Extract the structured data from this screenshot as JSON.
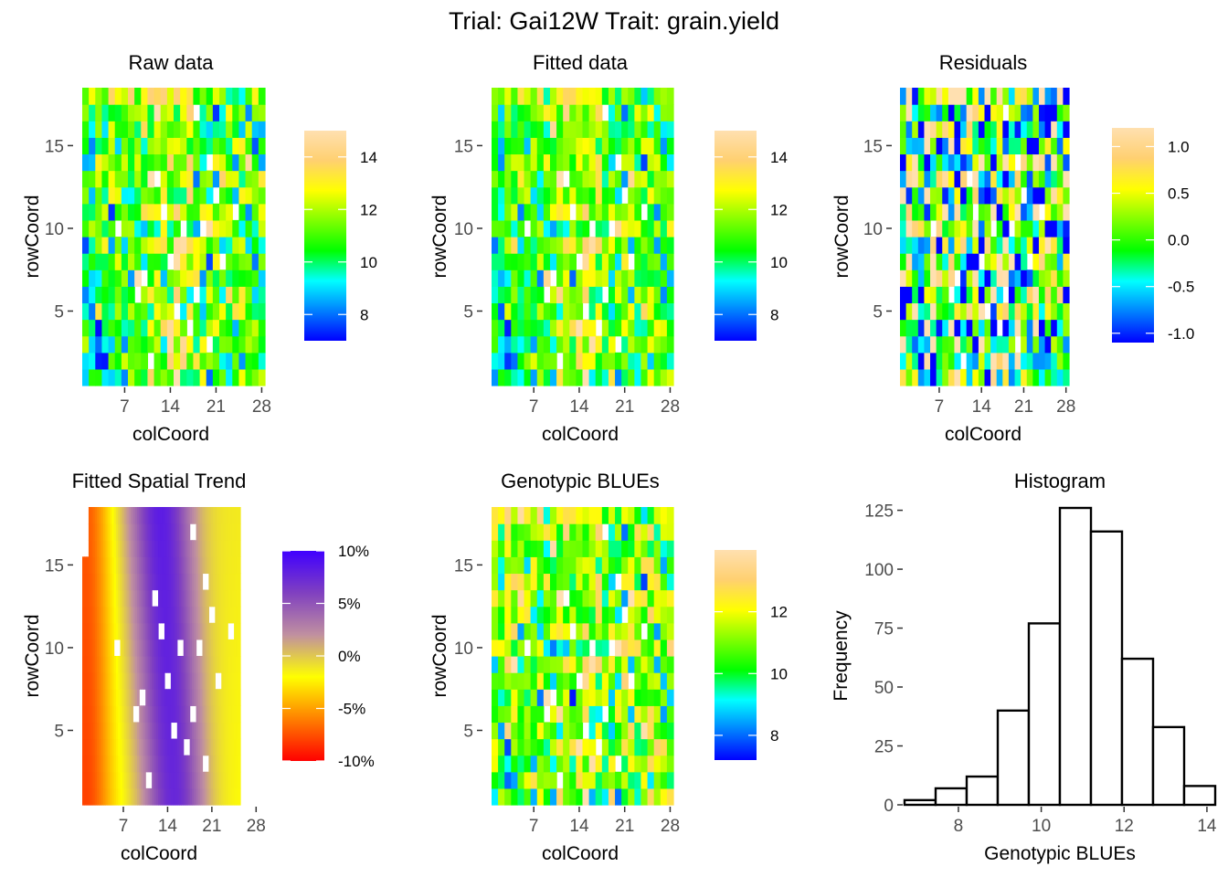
{
  "figure": {
    "title": "Trial: Gai12W Trait: grain.yield"
  },
  "colors": {
    "heat_scale": [
      "#0000ff",
      "#0080ff",
      "#00ffff",
      "#00ff00",
      "#80ff00",
      "#ffff00",
      "#ffd070",
      "#ffe0b0"
    ],
    "trend_scale": [
      "#ff0000",
      "#ff8000",
      "#ffff00",
      "#c090a0",
      "#8040c0",
      "#4000ff"
    ],
    "missing": "#ffffff"
  },
  "chart_data": [
    {
      "panel": "raw",
      "type": "heatmap",
      "title": "Raw data",
      "xlabel": "colCoord",
      "ylabel": "rowCoord",
      "x_ticks": [
        7,
        14,
        21,
        28
      ],
      "y_ticks": [
        5,
        10,
        15
      ],
      "x_range": [
        1,
        28
      ],
      "y_range": [
        1,
        18
      ],
      "legend": {
        "ticks": [
          "14",
          "12",
          "10",
          "8"
        ],
        "range": [
          7,
          15
        ]
      }
    },
    {
      "panel": "fitted",
      "type": "heatmap",
      "title": "Fitted data",
      "xlabel": "colCoord",
      "ylabel": "rowCoord",
      "x_ticks": [
        7,
        14,
        21,
        28
      ],
      "y_ticks": [
        5,
        10,
        15
      ],
      "x_range": [
        1,
        28
      ],
      "y_range": [
        1,
        18
      ],
      "legend": {
        "ticks": [
          "14",
          "12",
          "10",
          "8"
        ],
        "range": [
          7,
          15
        ]
      }
    },
    {
      "panel": "residuals",
      "type": "heatmap",
      "title": "Residuals",
      "xlabel": "colCoord",
      "ylabel": "rowCoord",
      "x_ticks": [
        7,
        14,
        21,
        28
      ],
      "y_ticks": [
        5,
        10,
        15
      ],
      "x_range": [
        1,
        28
      ],
      "y_range": [
        1,
        18
      ],
      "legend": {
        "ticks": [
          "1.0",
          "0.5",
          "0.0",
          "-0.5",
          "-1.0"
        ],
        "range": [
          -1.1,
          1.2
        ]
      }
    },
    {
      "panel": "trend",
      "type": "heatmap",
      "title": "Fitted Spatial Trend",
      "xlabel": "colCoord",
      "ylabel": "rowCoord",
      "x_ticks": [
        7,
        14,
        21,
        28
      ],
      "y_ticks": [
        5,
        10,
        15
      ],
      "x_range": [
        1,
        28
      ],
      "y_range": [
        1,
        18
      ],
      "legend": {
        "ticks": [
          "10%",
          "5%",
          "0%",
          "-5%",
          "-10%"
        ],
        "range": [
          -10,
          10
        ]
      }
    },
    {
      "panel": "blues",
      "type": "heatmap",
      "title": "Genotypic BLUEs",
      "xlabel": "colCoord",
      "ylabel": "rowCoord",
      "x_ticks": [
        7,
        14,
        21,
        28
      ],
      "y_ticks": [
        5,
        10,
        15
      ],
      "x_range": [
        1,
        28
      ],
      "y_range": [
        1,
        18
      ],
      "legend": {
        "ticks": [
          "12",
          "10",
          "8"
        ],
        "range": [
          7.2,
          14
        ]
      }
    },
    {
      "panel": "histogram",
      "type": "bar",
      "title": "Histogram",
      "xlabel": "Genotypic BLUEs",
      "ylabel": "Frequency",
      "bin_edges": [
        6.7,
        7.45,
        8.2,
        8.95,
        9.7,
        10.45,
        11.2,
        11.95,
        12.7,
        13.45,
        14.2
      ],
      "values": [
        2,
        7,
        12,
        40,
        77,
        126,
        116,
        62,
        33,
        8
      ],
      "x_ticks": [
        8,
        10,
        12,
        14
      ],
      "y_ticks": [
        0,
        25,
        50,
        75,
        100,
        125
      ],
      "xlim": [
        6.7,
        14.2
      ],
      "ylim": [
        0,
        126
      ]
    }
  ]
}
